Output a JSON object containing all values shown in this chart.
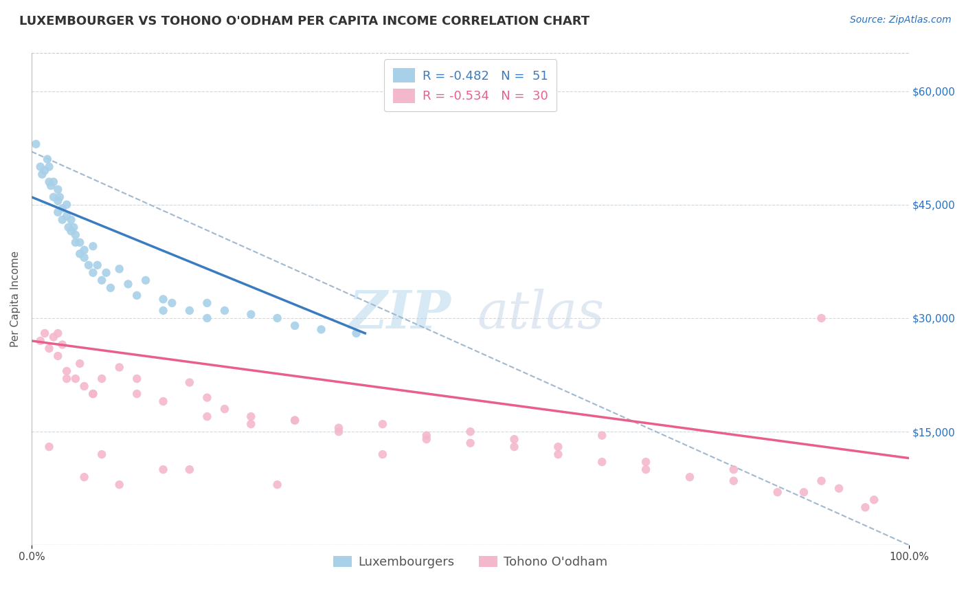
{
  "title": "LUXEMBOURGER VS TOHONO O'ODHAM PER CAPITA INCOME CORRELATION CHART",
  "source_text": "Source: ZipAtlas.com",
  "ylabel": "Per Capita Income",
  "xlim": [
    0,
    100
  ],
  "ylim": [
    0,
    65000
  ],
  "yticks": [
    0,
    15000,
    30000,
    45000,
    60000
  ],
  "ytick_labels": [
    "",
    "$15,000",
    "$30,000",
    "$45,000",
    "$60,000"
  ],
  "xtick_labels": [
    "0.0%",
    "100.0%"
  ],
  "legend1_label": "R = -0.482   N =  51",
  "legend2_label": "R = -0.534   N =  30",
  "legend_x_label": "Luxembourgers",
  "legend_y_label": "Tohono O'odham",
  "blue_color": "#a8d0e8",
  "pink_color": "#f4b8cc",
  "blue_line_color": "#3b7bbf",
  "pink_line_color": "#e8608a",
  "dashed_line_color": "#a0b8d0",
  "watermark_zip_color": "#a8d0e8",
  "watermark_atlas_color": "#c8d8e8",
  "background_color": "#ffffff",
  "title_fontsize": 13,
  "axis_label_fontsize": 11,
  "tick_fontsize": 11,
  "legend_fontsize": 13,
  "blue_scatter_x": [
    0.5,
    1.0,
    1.2,
    1.5,
    1.8,
    2.0,
    2.0,
    2.2,
    2.5,
    2.5,
    3.0,
    3.0,
    3.0,
    3.2,
    3.5,
    3.5,
    4.0,
    4.0,
    4.2,
    4.5,
    4.5,
    4.8,
    5.0,
    5.0,
    5.5,
    5.5,
    6.0,
    6.0,
    6.5,
    7.0,
    7.0,
    7.5,
    8.0,
    8.5,
    9.0,
    10.0,
    11.0,
    12.0,
    13.0,
    15.0,
    15.0,
    16.0,
    18.0,
    20.0,
    20.0,
    22.0,
    25.0,
    28.0,
    30.0,
    33.0,
    37.0
  ],
  "blue_scatter_y": [
    53000,
    50000,
    49000,
    49500,
    51000,
    48000,
    50000,
    47500,
    48000,
    46000,
    47000,
    45500,
    44000,
    46000,
    44500,
    43000,
    45000,
    43500,
    42000,
    43000,
    41500,
    42000,
    41000,
    40000,
    40000,
    38500,
    39000,
    38000,
    37000,
    39500,
    36000,
    37000,
    35000,
    36000,
    34000,
    36500,
    34500,
    33000,
    35000,
    32500,
    31000,
    32000,
    31000,
    32000,
    30000,
    31000,
    30500,
    30000,
    29000,
    28500,
    28000
  ],
  "pink_scatter_x": [
    1.0,
    1.5,
    2.0,
    2.5,
    3.0,
    3.5,
    4.0,
    5.0,
    5.5,
    6.0,
    7.0,
    8.0,
    10.0,
    12.0,
    15.0,
    18.0,
    20.0,
    22.0,
    25.0,
    30.0,
    35.0,
    40.0,
    45.0,
    50.0,
    55.0,
    60.0,
    65.0,
    70.0,
    80.0,
    90.0
  ],
  "pink_scatter_y": [
    27000,
    28000,
    26000,
    27500,
    25000,
    26500,
    23000,
    22000,
    24000,
    21000,
    20000,
    22000,
    23500,
    20000,
    19000,
    21500,
    19500,
    18000,
    17000,
    16500,
    15500,
    16000,
    14500,
    15000,
    14000,
    13000,
    14500,
    11000,
    10000,
    8500
  ],
  "pink_scatter_extra_x": [
    2.0,
    4.0,
    6.0,
    8.0,
    10.0,
    15.0,
    20.0,
    25.0,
    30.0,
    40.0,
    55.0,
    65.0,
    75.0,
    85.0,
    90.0,
    95.0,
    3.0,
    7.0,
    12.0,
    18.0,
    28.0,
    35.0,
    45.0,
    50.0,
    60.0,
    70.0,
    80.0,
    88.0,
    92.0,
    96.0
  ],
  "pink_scatter_extra_y": [
    13000,
    22000,
    9000,
    12000,
    8000,
    10000,
    17000,
    16000,
    16500,
    12000,
    13000,
    11000,
    9000,
    7000,
    30000,
    5000,
    28000,
    20000,
    22000,
    10000,
    8000,
    15000,
    14000,
    13500,
    12000,
    10000,
    8500,
    7000,
    7500,
    6000
  ],
  "blue_trend_x": [
    0,
    38
  ],
  "blue_trend_y": [
    46000,
    28000
  ],
  "pink_trend_x": [
    0,
    100
  ],
  "pink_trend_y": [
    27000,
    11500
  ],
  "dashed_trend_x": [
    0,
    100
  ],
  "dashed_trend_y": [
    52000,
    0
  ]
}
